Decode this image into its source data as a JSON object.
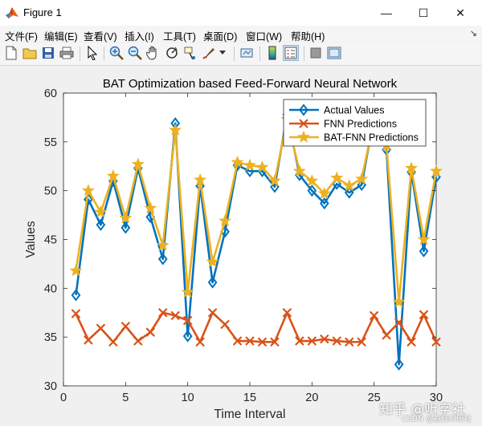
{
  "window": {
    "title": "Figure 1",
    "minimize_glyph": "—",
    "maximize_glyph": "☐",
    "close_glyph": "✕",
    "icon": "matlab-icon"
  },
  "menu": {
    "items": [
      "文件(F)",
      "编辑(E)",
      "查看(V)",
      "插入(I)",
      "工具(T)",
      "桌面(D)",
      "窗口(W)",
      "帮助(H)"
    ],
    "dock_glyph": "↘"
  },
  "toolbar": {
    "buttons": [
      "new-figure-icon",
      "open-file-icon",
      "save-icon",
      "print-icon",
      "select-arrow-icon",
      "zoom-in-icon",
      "zoom-out-icon",
      "pan-hand-icon",
      "rotate-3d-icon",
      "data-cursor-icon",
      "brush-icon",
      "brush-dropdown-icon",
      "link-plot-icon",
      "insert-colorbar-icon",
      "insert-legend-icon",
      "hide-plot-tools-icon",
      "show-plot-tools-icon"
    ]
  },
  "watermark": {
    "main": "知乎 @听字社",
    "sub": "CSDN @荔枝科研社"
  },
  "colors": {
    "actual": "#0072BD",
    "fnn": "#D95319",
    "bat": "#EDB120",
    "axes_bg": "#ffffff",
    "figure_bg": "#f0f0f0"
  },
  "chart_data": {
    "type": "line",
    "title": "BAT Optimization based Feed-Forward Neural Network",
    "xlabel": "Time Interval",
    "ylabel": "Values",
    "xlim": [
      0,
      30
    ],
    "ylim": [
      30,
      60
    ],
    "xticks": [
      0,
      5,
      10,
      15,
      20,
      25,
      30
    ],
    "yticks": [
      30,
      35,
      40,
      45,
      50,
      55,
      60
    ],
    "legend_position": "top-right",
    "x": [
      1,
      2,
      3,
      4,
      5,
      6,
      7,
      8,
      9,
      10,
      11,
      12,
      13,
      14,
      15,
      16,
      17,
      18,
      19,
      20,
      21,
      22,
      23,
      24,
      25,
      26,
      27,
      28,
      29,
      30
    ],
    "series": [
      {
        "name": "Actual Values",
        "marker": "diamond",
        "values": [
          39.3,
          49.1,
          46.5,
          51.0,
          46.2,
          52.3,
          47.3,
          43.0,
          56.9,
          35.1,
          50.5,
          40.6,
          45.8,
          52.6,
          52.0,
          52.0,
          50.4,
          57.8,
          51.6,
          50.0,
          48.7,
          50.7,
          49.8,
          50.6,
          57.6,
          54.2,
          32.2,
          51.9,
          43.8,
          51.4
        ]
      },
      {
        "name": "FNN Predictions",
        "marker": "x",
        "values": [
          37.4,
          34.7,
          35.9,
          34.5,
          36.1,
          34.6,
          35.5,
          37.5,
          37.2,
          36.7,
          34.5,
          37.5,
          36.3,
          34.6,
          34.6,
          34.5,
          34.5,
          37.5,
          34.6,
          34.6,
          34.8,
          34.6,
          34.5,
          34.5,
          37.2,
          35.2,
          36.5,
          34.5,
          37.3,
          34.5
        ]
      },
      {
        "name": "BAT-FNN Predictions",
        "marker": "star",
        "values": [
          41.8,
          50.0,
          47.8,
          51.5,
          47.2,
          52.7,
          48.2,
          44.4,
          56.2,
          39.6,
          51.1,
          42.7,
          46.9,
          52.9,
          52.6,
          52.4,
          51.0,
          57.3,
          52.0,
          51.0,
          49.7,
          51.3,
          50.5,
          51.2,
          57.3,
          54.6,
          38.6,
          52.3,
          45.0,
          52.0
        ]
      }
    ]
  }
}
